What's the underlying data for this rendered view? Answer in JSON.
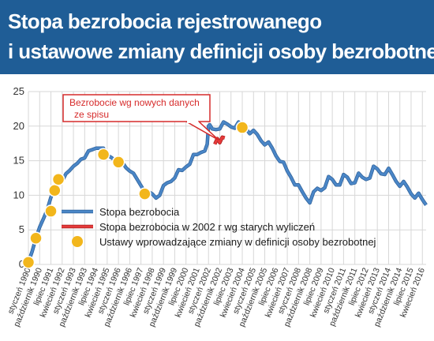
{
  "title_line1": "Stopa bezrobocia rejestrowanego",
  "title_line2": "i ustawowe zmiany definicji osoby bezrobotnej",
  "colors": {
    "header_bg": "#1f5d96",
    "series_main": "#4a86c7",
    "series_old": "#e63a3a",
    "markers": "#f2b61c",
    "grid": "#d7d7d7",
    "callout": "#d62b2b"
  },
  "chart_data": {
    "type": "line",
    "ylim": [
      0,
      25
    ],
    "yticks": [
      0,
      5,
      10,
      15,
      20,
      25
    ],
    "xticks": [
      "styczeń 1990",
      "październik 1990",
      "lipiec 1991",
      "kwiecień 1992",
      "styczeń 1993",
      "październik 1993",
      "lipiec 1994",
      "kwiecień 1995",
      "styczeń 1996",
      "październik 1996",
      "lipiec 1997",
      "kwiecień 1998",
      "styczeń 1999",
      "październik 1999",
      "lipiec 2000",
      "kwiecień 2001",
      "styczeń 2002",
      "październik 2002",
      "lipiec 2003",
      "kwiecień 2004",
      "styczeń 2005",
      "październik 2005",
      "lipiec 2006",
      "kwiecień 2007",
      "styczeń 2008",
      "październik 2008",
      "lipiec 2009",
      "kwiecień 2010",
      "styczeń 2011",
      "październik 2011",
      "lipiec 2012",
      "kwiecień 2013",
      "styczeń 2014",
      "październik 2014",
      "lipiec 2015",
      "kwiecień 2016"
    ],
    "series": [
      {
        "name": "Stopa bezrobocia",
        "points": [
          [
            "1990-01",
            0.3
          ],
          [
            "1990-04",
            1.9
          ],
          [
            "1990-07",
            3.8
          ],
          [
            "1990-10",
            5.4
          ],
          [
            "1991-01",
            6.6
          ],
          [
            "1991-04",
            7.9
          ],
          [
            "1991-07",
            9.7
          ],
          [
            "1991-10",
            10.9
          ],
          [
            "1992-01",
            11.8
          ],
          [
            "1992-04",
            12.0
          ],
          [
            "1992-07",
            13.1
          ],
          [
            "1992-10",
            13.6
          ],
          [
            "1993-01",
            14.2
          ],
          [
            "1993-04",
            14.6
          ],
          [
            "1993-07",
            15.2
          ],
          [
            "1993-10",
            15.4
          ],
          [
            "1994-01",
            16.4
          ],
          [
            "1994-04",
            16.6
          ],
          [
            "1994-07",
            16.8
          ],
          [
            "1994-10",
            16.8
          ],
          [
            "1995-01",
            16.8
          ],
          [
            "1995-04",
            15.8
          ],
          [
            "1995-07",
            15.5
          ],
          [
            "1995-10",
            15.1
          ],
          [
            "1996-01",
            15.2
          ],
          [
            "1996-04",
            14.8
          ],
          [
            "1996-07",
            14.0
          ],
          [
            "1996-10",
            13.5
          ],
          [
            "1997-01",
            13.2
          ],
          [
            "1997-04",
            12.3
          ],
          [
            "1997-07",
            11.4
          ],
          [
            "1997-10",
            10.5
          ],
          [
            "1998-01",
            10.5
          ],
          [
            "1998-04",
            10.2
          ],
          [
            "1998-07",
            9.6
          ],
          [
            "1998-10",
            10.0
          ],
          [
            "1999-01",
            11.4
          ],
          [
            "1999-04",
            11.8
          ],
          [
            "1999-07",
            12.0
          ],
          [
            "1999-10",
            12.5
          ],
          [
            "2000-01",
            13.7
          ],
          [
            "2000-04",
            13.6
          ],
          [
            "2000-07",
            14.1
          ],
          [
            "2000-10",
            14.5
          ],
          [
            "2001-01",
            15.9
          ],
          [
            "2001-04",
            15.9
          ],
          [
            "2001-07",
            16.2
          ],
          [
            "2001-10",
            16.4
          ],
          [
            "2001-12",
            17.4
          ],
          [
            "2002-01",
            20.0
          ],
          [
            "2002-02",
            20.2
          ],
          [
            "2002-04",
            19.6
          ],
          [
            "2002-07",
            19.5
          ],
          [
            "2002-10",
            19.6
          ],
          [
            "2003-01",
            20.6
          ],
          [
            "2003-04",
            20.3
          ],
          [
            "2003-07",
            19.9
          ],
          [
            "2003-10",
            19.7
          ],
          [
            "2004-01",
            20.6
          ],
          [
            "2004-04",
            20.2
          ],
          [
            "2004-07",
            19.6
          ],
          [
            "2004-10",
            18.9
          ],
          [
            "2005-01",
            19.4
          ],
          [
            "2005-04",
            18.8
          ],
          [
            "2005-07",
            17.9
          ],
          [
            "2005-10",
            17.3
          ],
          [
            "2006-01",
            17.7
          ],
          [
            "2006-04",
            16.8
          ],
          [
            "2006-07",
            15.7
          ],
          [
            "2006-10",
            14.9
          ],
          [
            "2007-01",
            14.8
          ],
          [
            "2007-04",
            13.5
          ],
          [
            "2007-07",
            12.6
          ],
          [
            "2007-10",
            11.5
          ],
          [
            "2008-01",
            11.5
          ],
          [
            "2008-04",
            10.5
          ],
          [
            "2008-07",
            9.6
          ],
          [
            "2008-10",
            8.9
          ],
          [
            "2009-01",
            10.5
          ],
          [
            "2009-04",
            11.0
          ],
          [
            "2009-07",
            10.7
          ],
          [
            "2009-10",
            11.1
          ],
          [
            "2010-01",
            12.7
          ],
          [
            "2010-04",
            12.3
          ],
          [
            "2010-07",
            11.5
          ],
          [
            "2010-10",
            11.5
          ],
          [
            "2011-01",
            13.0
          ],
          [
            "2011-04",
            12.6
          ],
          [
            "2011-07",
            11.7
          ],
          [
            "2011-10",
            11.8
          ],
          [
            "2012-01",
            13.2
          ],
          [
            "2012-04",
            12.6
          ],
          [
            "2012-07",
            12.3
          ],
          [
            "2012-10",
            12.5
          ],
          [
            "2013-01",
            14.2
          ],
          [
            "2013-04",
            13.8
          ],
          [
            "2013-07",
            13.1
          ],
          [
            "2013-10",
            13.0
          ],
          [
            "2014-01",
            13.9
          ],
          [
            "2014-04",
            13.0
          ],
          [
            "2014-07",
            12.0
          ],
          [
            "2014-10",
            11.3
          ],
          [
            "2015-01",
            12.0
          ],
          [
            "2015-04",
            11.2
          ],
          [
            "2015-07",
            10.2
          ],
          [
            "2015-10",
            9.6
          ],
          [
            "2016-01",
            10.3
          ],
          [
            "2016-04",
            9.4
          ],
          [
            "2016-07",
            8.6
          ]
        ]
      },
      {
        "name": "Stopa bezrobocia w 2002 r wg starych wyliczeń",
        "points": [
          [
            "2002-06",
            17.4
          ],
          [
            "2002-08",
            18.2
          ],
          [
            "2002-10",
            17.6
          ],
          [
            "2002-12",
            18.4
          ],
          [
            "2003-02",
            18.3
          ]
        ]
      },
      {
        "name": "Ustawy wprowadzające zmiany w definicji osoby bezrobotnej",
        "points": [
          [
            "1990-01",
            0.3
          ],
          [
            "1990-07",
            3.8
          ],
          [
            "1991-07",
            7.7
          ],
          [
            "1991-10",
            10.7
          ],
          [
            "1992-01",
            12.3
          ],
          [
            "1995-01",
            15.9
          ],
          [
            "1996-01",
            14.8
          ],
          [
            "1997-10",
            10.2
          ],
          [
            "2004-04",
            19.8
          ]
        ]
      }
    ],
    "annotation": "Bezrobocie wg nowych danych ze spisu",
    "grid": true,
    "legend_position": "bottom-left"
  }
}
